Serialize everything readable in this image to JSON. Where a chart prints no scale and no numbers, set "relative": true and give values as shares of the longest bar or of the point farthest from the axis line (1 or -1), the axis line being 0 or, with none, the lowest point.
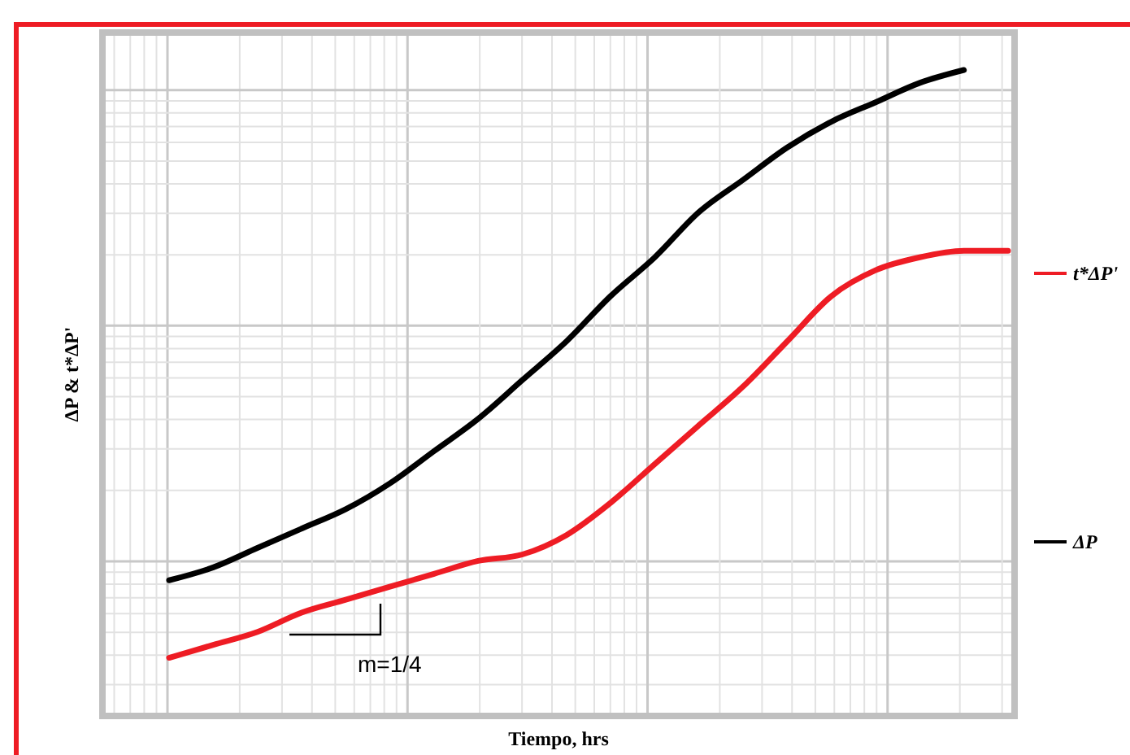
{
  "chart_data": {
    "type": "line",
    "relative": true,
    "xlabel": "Tiempo, hrs",
    "ylabel": "ΔP & t*ΔP'",
    "grid": true,
    "legend": "right",
    "line_style": "solid",
    "annotations": [
      "m=1/4"
    ],
    "categories": [
      null,
      null,
      null,
      null,
      null,
      null,
      null,
      null,
      null,
      null,
      null,
      null,
      null,
      null,
      null,
      null,
      null,
      null,
      null,
      null
    ],
    "series": [
      {
        "name": "t*ΔP'",
        "color": "#ee1c24",
        "values": [
          0.09,
          0.11,
          0.13,
          0.16,
          0.18,
          0.2,
          0.22,
          0.24,
          0.25,
          0.28,
          0.33,
          0.39,
          0.45,
          0.51,
          0.58,
          0.65,
          0.69,
          0.71,
          0.72,
          0.72
        ]
      },
      {
        "name": "ΔP",
        "color": "#000000",
        "values": [
          0.21,
          0.23,
          0.26,
          0.29,
          0.32,
          0.36,
          0.41,
          0.46,
          0.52,
          0.58,
          0.65,
          0.71,
          0.78,
          0.83,
          0.88,
          0.92,
          0.95,
          0.98,
          1,
          null
        ]
      }
    ]
  }
}
